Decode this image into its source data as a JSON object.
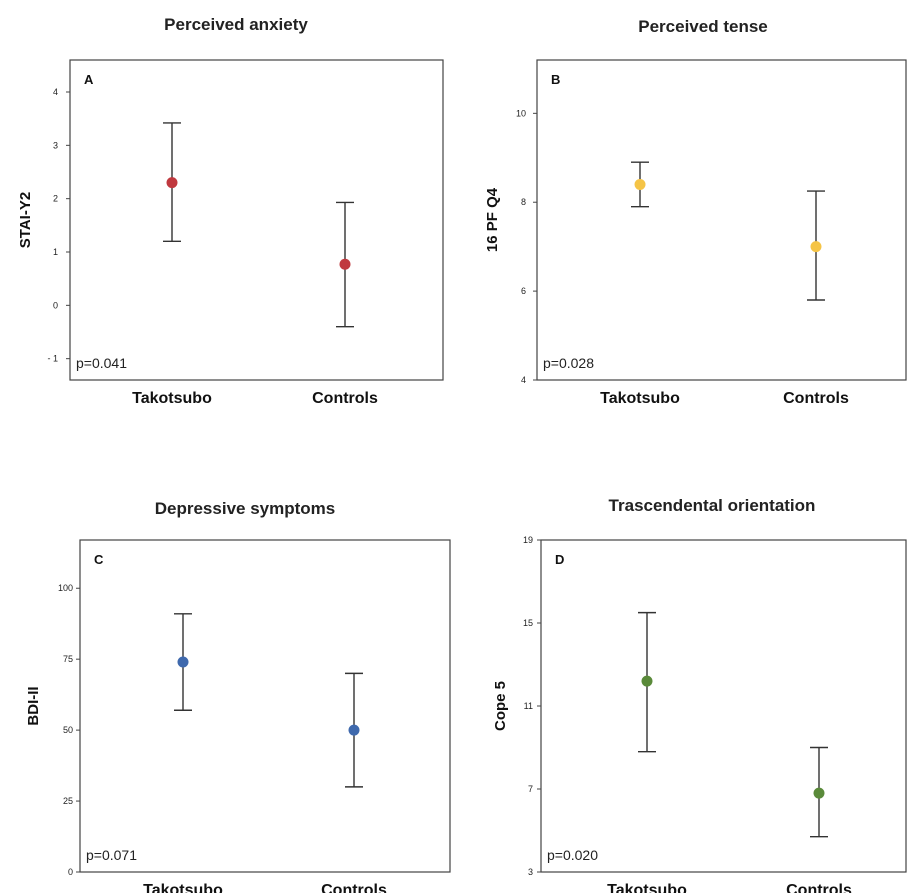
{
  "chart_data": [
    {
      "type": "errorbar",
      "title": "Perceived anxiety",
      "panel": "A",
      "ylabel": "STAI-Y2",
      "ylim": [
        -1.4,
        4.6
      ],
      "yticks": [
        -1,
        0,
        1,
        2,
        3,
        4
      ],
      "ytick_labels": [
        "- 1",
        "0",
        "1",
        "2",
        "3",
        "4"
      ],
      "categories": [
        "Takotsubo",
        "Controls"
      ],
      "means": [
        2.3,
        0.77
      ],
      "lower": [
        1.2,
        -0.4
      ],
      "upper": [
        3.42,
        1.93
      ],
      "color": "#c0393f",
      "pvalue": "p=0.041"
    },
    {
      "type": "errorbar",
      "title": "Perceived tense",
      "panel": "B",
      "ylabel": "16 PF Q4",
      "ylim": [
        4.0,
        11.2
      ],
      "yticks": [
        4,
        6,
        8,
        10
      ],
      "ytick_labels": [
        "4",
        "6",
        "8",
        "10"
      ],
      "categories": [
        "Takotsubo",
        "Controls"
      ],
      "means": [
        8.4,
        7.0
      ],
      "lower": [
        7.9,
        5.8
      ],
      "upper": [
        8.9,
        8.25
      ],
      "color": "#f5c446",
      "pvalue": "p=0.028"
    },
    {
      "type": "errorbar",
      "title": "Depressive symptoms",
      "panel": "C",
      "ylabel": "BDI-II",
      "ylim": [
        0,
        117
      ],
      "yticks": [
        0,
        25,
        50,
        75,
        100
      ],
      "ytick_labels": [
        "0",
        "25",
        "50",
        "75",
        "100"
      ],
      "categories": [
        "Takotsubo",
        "Controls"
      ],
      "means": [
        74,
        50
      ],
      "lower": [
        57,
        30
      ],
      "upper": [
        91,
        70
      ],
      "color": "#3f69ad",
      "pvalue": "p=0.071"
    },
    {
      "type": "errorbar",
      "title": "Trascendental orientation",
      "panel": "D",
      "ylabel": "Cope 5",
      "ylim": [
        3,
        19
      ],
      "yticks": [
        3,
        7,
        11,
        15,
        19
      ],
      "ytick_labels": [
        "3",
        "7",
        "11",
        "15",
        "19"
      ],
      "categories": [
        "Takotsubo",
        "Controls"
      ],
      "means": [
        12.2,
        6.8
      ],
      "lower": [
        8.8,
        4.7
      ],
      "upper": [
        15.5,
        9.0
      ],
      "color": "#5a8a3a",
      "pvalue": "p=0.020"
    }
  ]
}
